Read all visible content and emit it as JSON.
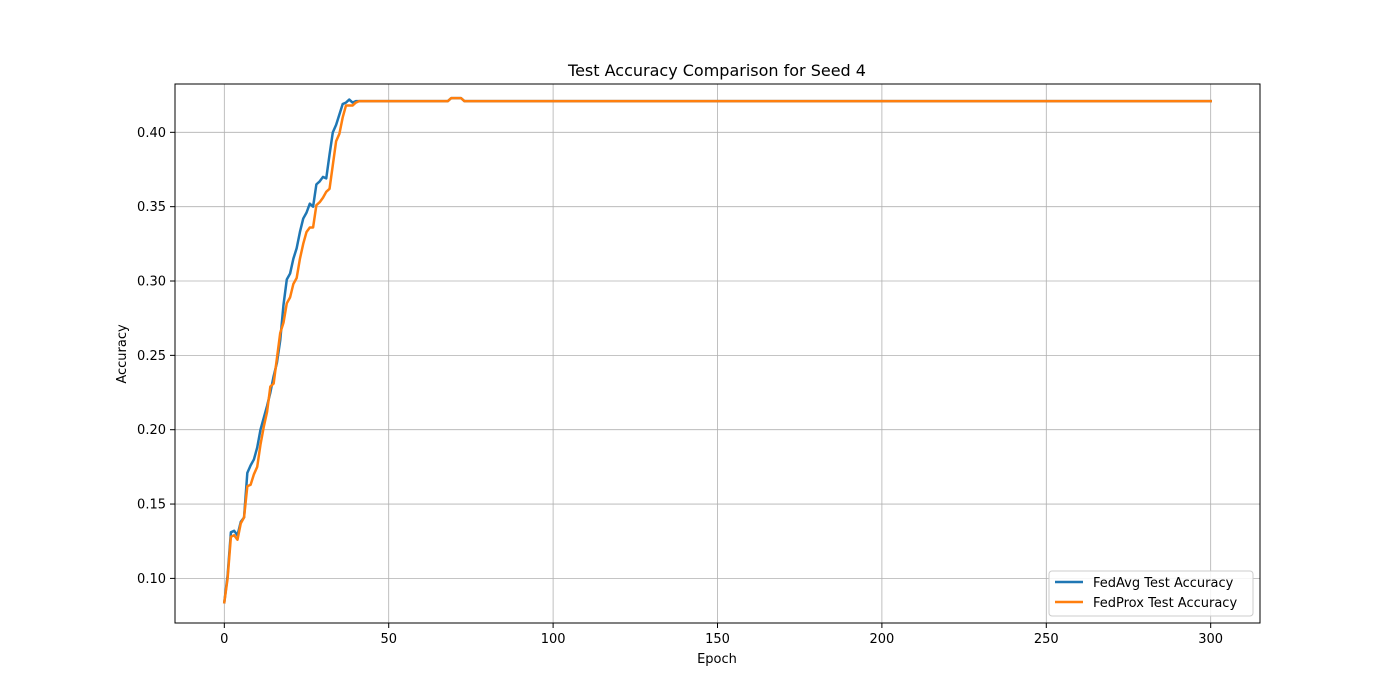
{
  "chart_data": {
    "type": "line",
    "title": "Test Accuracy Comparison for Seed 4",
    "xlabel": "Epoch",
    "ylabel": "Accuracy",
    "xlim": [
      -15,
      315
    ],
    "ylim": [
      0.07,
      0.4325
    ],
    "xticks": [
      0,
      50,
      100,
      150,
      200,
      250,
      300
    ],
    "xtick_labels": [
      "0",
      "50",
      "100",
      "150",
      "200",
      "250",
      "300"
    ],
    "yticks": [
      0.1,
      0.15,
      0.2,
      0.25,
      0.3,
      0.35,
      0.4
    ],
    "ytick_labels": [
      "0.10",
      "0.15",
      "0.20",
      "0.25",
      "0.30",
      "0.35",
      "0.40"
    ],
    "grid": true,
    "legend_position": "bottom-right",
    "series": [
      {
        "name": "FedAvg Test Accuracy",
        "color": "#1f77b4",
        "x": [
          0,
          1,
          2,
          3,
          4,
          5,
          6,
          7,
          8,
          9,
          10,
          11,
          12,
          13,
          14,
          15,
          16,
          17,
          18,
          19,
          20,
          21,
          22,
          23,
          24,
          25,
          26,
          27,
          28,
          29,
          30,
          31,
          32,
          33,
          34,
          35,
          36,
          37,
          38,
          39,
          40,
          41,
          42,
          68,
          69,
          72,
          73,
          74,
          300
        ],
        "y": [
          0.084,
          0.102,
          0.131,
          0.132,
          0.129,
          0.138,
          0.141,
          0.171,
          0.176,
          0.18,
          0.188,
          0.2,
          0.208,
          0.216,
          0.225,
          0.236,
          0.245,
          0.26,
          0.284,
          0.301,
          0.305,
          0.315,
          0.322,
          0.333,
          0.342,
          0.346,
          0.352,
          0.35,
          0.365,
          0.367,
          0.37,
          0.369,
          0.385,
          0.4,
          0.405,
          0.412,
          0.419,
          0.42,
          0.422,
          0.42,
          0.421,
          0.421,
          0.421,
          0.421,
          0.423,
          0.423,
          0.421,
          0.421,
          0.421
        ]
      },
      {
        "name": "FedProx Test Accuracy",
        "color": "#ff7f0e",
        "x": [
          0,
          1,
          2,
          3,
          4,
          5,
          6,
          7,
          8,
          9,
          10,
          11,
          12,
          13,
          14,
          15,
          16,
          17,
          18,
          19,
          20,
          21,
          22,
          23,
          24,
          25,
          26,
          27,
          28,
          29,
          30,
          31,
          32,
          33,
          34,
          35,
          36,
          37,
          38,
          39,
          40,
          41,
          42,
          68,
          69,
          72,
          73,
          74,
          300
        ],
        "y": [
          0.084,
          0.1,
          0.128,
          0.129,
          0.126,
          0.137,
          0.141,
          0.162,
          0.163,
          0.17,
          0.175,
          0.19,
          0.202,
          0.212,
          0.229,
          0.231,
          0.248,
          0.265,
          0.272,
          0.285,
          0.289,
          0.298,
          0.302,
          0.315,
          0.325,
          0.333,
          0.336,
          0.336,
          0.351,
          0.353,
          0.356,
          0.36,
          0.362,
          0.378,
          0.394,
          0.399,
          0.41,
          0.418,
          0.418,
          0.418,
          0.42,
          0.421,
          0.421,
          0.421,
          0.423,
          0.423,
          0.421,
          0.421,
          0.421
        ]
      }
    ]
  }
}
